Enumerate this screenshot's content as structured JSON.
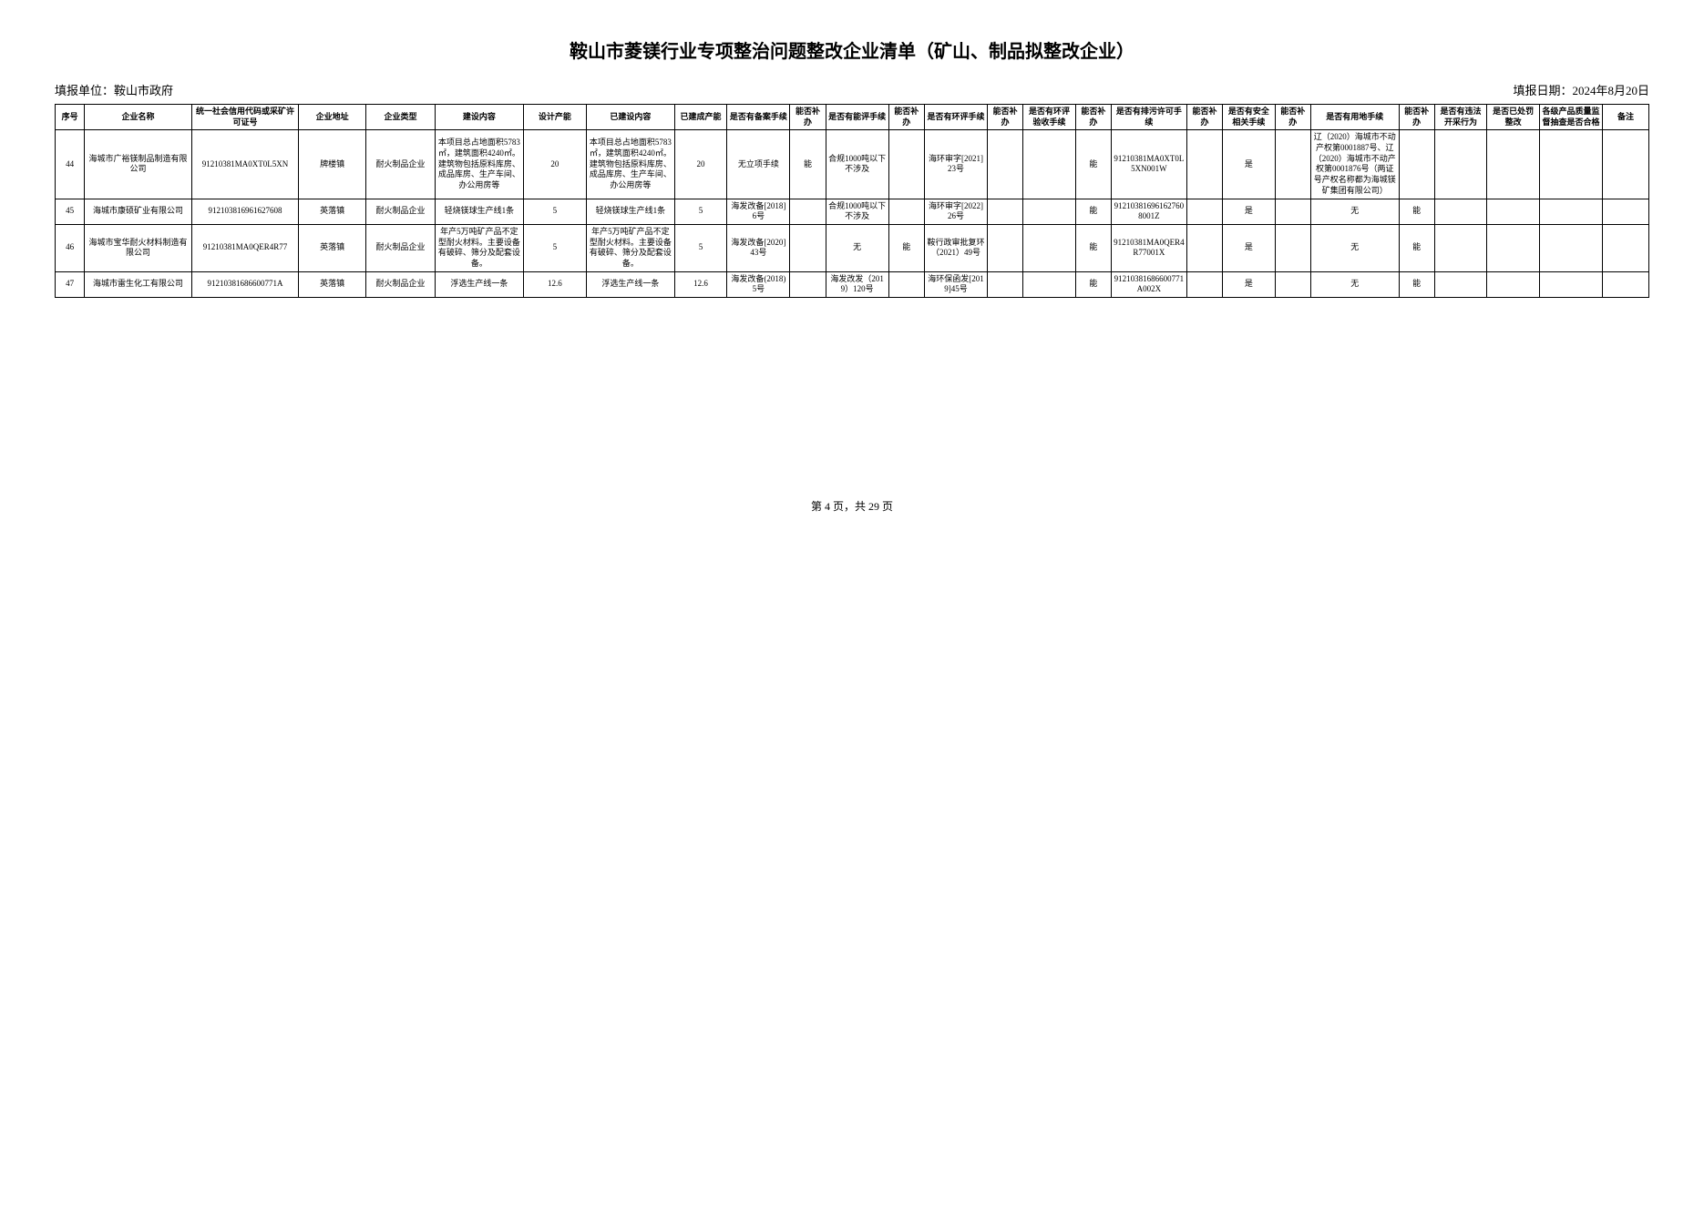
{
  "title": "鞍山市菱镁行业专项整治问题整改企业清单（矿山、制品拟整改企业）",
  "reporter_label": "填报单位：鞍山市政府",
  "report_date_label": "填报日期：2024年8月20日",
  "footer": "第 4 页，共 29 页",
  "columns": [
    "序号",
    "企业名称",
    "统一社会信用代码或采矿许可证号",
    "企业地址",
    "企业类型",
    "建设内容",
    "设计产能",
    "已建设内容",
    "已建成产能",
    "是否有备案手续",
    "能否补办",
    "是否有能评手续",
    "能否补办",
    "是否有环评手续",
    "能否补办",
    "是否有环评验收手续",
    "能否补办",
    "是否有排污许可手续",
    "能否补办",
    "是否有安全相关手续",
    "能否补办",
    "是否有用地手续",
    "能否补办",
    "是否有违法开采行为",
    "是否已处罚整改",
    "各级产品质量监督抽查是否合格",
    "备注"
  ],
  "rows": [
    {
      "seq": "44",
      "name": "海城市广裕镁制品制造有限公司",
      "code": "91210381MA0XT0L5XN",
      "addr": "牌楼镇",
      "etype": "耐火制品企业",
      "jsnr": "本项目总占地面积5783㎡，建筑面积4240㎡。建筑物包括原料库房、成品库房、生产车间、办公用房等",
      "sjcn": "20",
      "yjs": "本项目总占地面积5783㎡，建筑面积4240㎡。建筑物包括原料库房、成品库房、生产车间、办公用房等",
      "yjcn": "20",
      "ba": "无立项手续",
      "nb1": "能",
      "np": "合规1000吨以下不涉及",
      "nb2": "",
      "hp": "海环审字[2021]23号",
      "nb3": "",
      "hys": "",
      "nb4": "能",
      "pw": "91210381MA0XT0L5XN001W",
      "nb5": "",
      "aq": "是",
      "nb6": "",
      "yd": "辽（2020）海城市不动产权第0001887号、辽（2020）海城市不动产权第0001876号（两证号产权名称都为海城镁矿集团有限公司）",
      "nb7": "",
      "wfkc": "",
      "cfzg": "",
      "zljd": "",
      "bz": ""
    },
    {
      "seq": "45",
      "name": "海城市康硕矿业有限公司",
      "code": "912103816961627608",
      "addr": "英落镇",
      "etype": "耐火制品企业",
      "jsnr": "轻烧镁球生产线1条",
      "sjcn": "5",
      "yjs": "轻烧镁球生产线1条",
      "yjcn": "5",
      "ba": "海发改备[2018]6号",
      "nb1": "",
      "np": "合规1000吨以下不涉及",
      "nb2": "",
      "hp": "海环审字[2022]26号",
      "nb3": "",
      "hys": "",
      "nb4": "能",
      "pw": "912103816961627608001Z",
      "nb5": "",
      "aq": "是",
      "nb6": "",
      "yd": "无",
      "nb7": "能",
      "wfkc": "",
      "cfzg": "",
      "zljd": "",
      "bz": ""
    },
    {
      "seq": "46",
      "name": "海城市宝华耐火材料制造有限公司",
      "code": "91210381MA0QER4R77",
      "addr": "英落镇",
      "etype": "耐火制品企业",
      "jsnr": "年产5万吨矿产品不定型耐火材料。主要设备有破碎、筛分及配套设备。",
      "sjcn": "5",
      "yjs": "年产5万吨矿产品不定型耐火材料。主要设备有破碎、筛分及配套设备。",
      "yjcn": "5",
      "ba": "海发改备[2020]43号",
      "nb1": "",
      "np": "无",
      "nb2": "能",
      "hp": "鞍行政审批复环（2021）49号",
      "nb3": "",
      "hys": "",
      "nb4": "能",
      "pw": "91210381MA0QER4R77001X",
      "nb5": "",
      "aq": "是",
      "nb6": "",
      "yd": "无",
      "nb7": "能",
      "wfkc": "",
      "cfzg": "",
      "zljd": "",
      "bz": ""
    },
    {
      "seq": "47",
      "name": "海城市雷生化工有限公司",
      "code": "91210381686600771A",
      "addr": "英落镇",
      "etype": "耐火制品企业",
      "jsnr": "浮选生产线一条",
      "sjcn": "12.6",
      "yjs": "浮选生产线一条",
      "yjcn": "12.6",
      "ba": "海发改备(2018)5号",
      "nb1": "",
      "np": "海发改发（2019）120号",
      "nb2": "",
      "hp": "海环保函发[2019]45号",
      "nb3": "",
      "hys": "",
      "nb4": "能",
      "pw": "91210381686600771A002X",
      "nb5": "",
      "aq": "是",
      "nb6": "",
      "yd": "无",
      "nb7": "能",
      "wfkc": "",
      "cfzg": "",
      "zljd": "",
      "bz": ""
    }
  ]
}
